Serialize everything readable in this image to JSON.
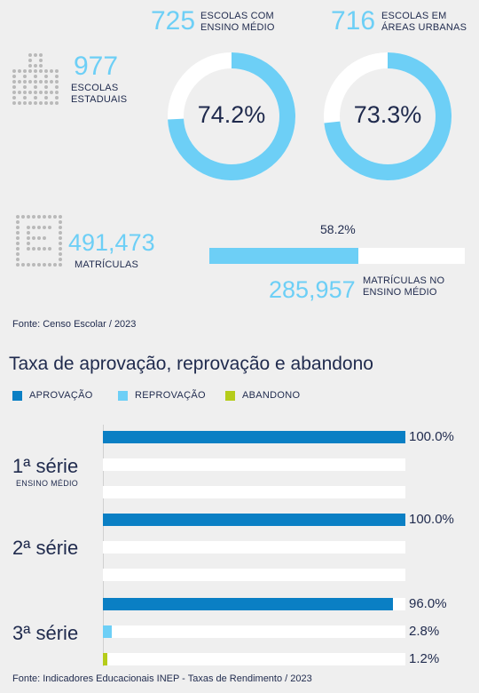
{
  "stats": {
    "escolas_estaduais": {
      "number": "977",
      "line1": "ESCOLAS",
      "line2": "ESTADUAIS"
    },
    "ensino_medio": {
      "number": "725",
      "line1": "ESCOLAS COM",
      "line2": "ENSINO MÉDIO",
      "pct_label": "74.2%",
      "pct": 74.2
    },
    "areas_urbanas": {
      "number": "716",
      "line1": "ESCOLAS EM",
      "line2": "ÁREAS URBANAS",
      "pct_label": "73.3%",
      "pct": 73.3
    },
    "matriculas": {
      "number": "491,473",
      "label": "MATRÍCULAS"
    },
    "matriculas_em": {
      "number": "285,957",
      "line1": "MATRÍCULAS NO",
      "line2": "ENSINO MÉDIO",
      "pct_label": "58.2%",
      "pct": 58.2
    },
    "fonte": "Fonte: Censo Escolar / 2023"
  },
  "colors": {
    "aprovacao": "#0a7fc4",
    "reprovacao": "#6dcff6",
    "abandono": "#b5cc1a",
    "donut_bg": "#ffffff"
  },
  "chart_data": {
    "type": "bar",
    "title": "Taxa de aprovação, reprovação e abandono",
    "legend": [
      "APROVAÇÃO",
      "REPROVAÇÃO",
      "ABANDONO"
    ],
    "categories": [
      "1ª série",
      "2ª série",
      "3ª série"
    ],
    "category_sub": [
      "ENSINO MÉDIO",
      "",
      ""
    ],
    "xlim": [
      0,
      100
    ],
    "series": [
      {
        "name": "APROVAÇÃO",
        "values": [
          100.0,
          100.0,
          96.0
        ],
        "labels": [
          "100.0%",
          "100.0%",
          "96.0%"
        ]
      },
      {
        "name": "REPROVAÇÃO",
        "values": [
          0,
          0,
          2.8
        ],
        "labels": [
          "",
          "",
          "2.8%"
        ]
      },
      {
        "name": "ABANDONO",
        "values": [
          0,
          0,
          1.2
        ],
        "labels": [
          "",
          "",
          "1.2%"
        ]
      }
    ],
    "fonte": "Fonte: Indicadores Educacionais INEP - Taxas de Rendimento / 2023"
  }
}
